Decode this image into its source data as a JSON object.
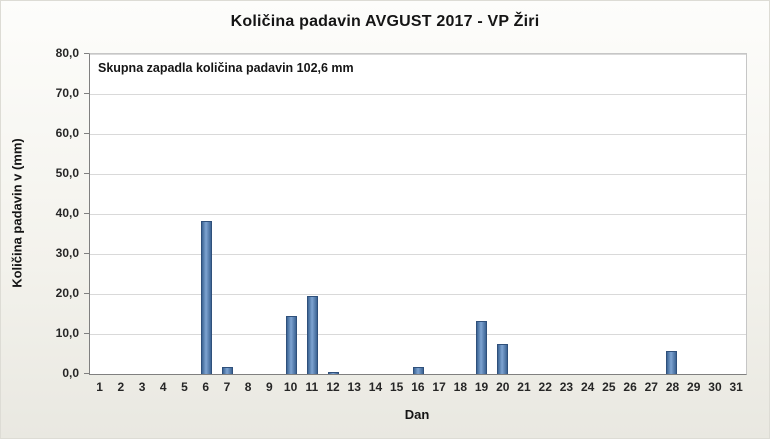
{
  "chart_data": {
    "type": "bar",
    "title": "Količina padavin AVGUST 2017 - VP Žiri",
    "annotation": "Skupna zapadla količina padavin 102,6 mm",
    "xlabel": "Dan",
    "ylabel": "Količina padavin v (mm)",
    "ylim": [
      0,
      80
    ],
    "ytick_step": 10,
    "ytick_labels_top_to_bottom": [
      "80,0",
      "70,0",
      "60,0",
      "50,0",
      "40,0",
      "30,0",
      "20,0",
      "10,0",
      "0,0"
    ],
    "categories": [
      "1",
      "2",
      "3",
      "4",
      "5",
      "6",
      "7",
      "8",
      "9",
      "10",
      "11",
      "12",
      "13",
      "14",
      "15",
      "16",
      "17",
      "18",
      "19",
      "20",
      "21",
      "22",
      "23",
      "24",
      "25",
      "26",
      "27",
      "28",
      "29",
      "30",
      "31"
    ],
    "values": [
      0,
      0,
      0,
      0,
      0,
      38.2,
      1.8,
      0,
      0,
      14.4,
      19.5,
      0.4,
      0,
      0,
      0,
      1.8,
      0,
      0,
      13.2,
      7.6,
      0,
      0,
      0,
      0,
      0,
      0,
      0,
      5.7,
      0,
      0,
      0
    ],
    "grid": true,
    "legend": "none",
    "bar_color": "#4f81bd",
    "bar_border_color": "#2f507b",
    "gridline_color": "#d9d9d9",
    "axis_color": "#808080",
    "total_mm": "102,6"
  }
}
